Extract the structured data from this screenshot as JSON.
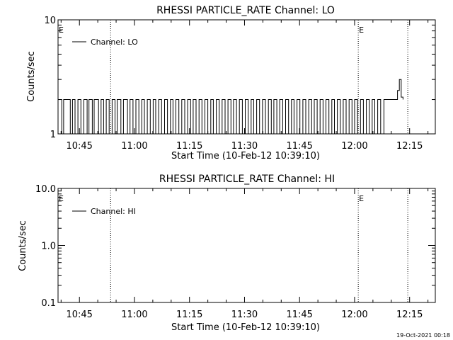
{
  "footer": {
    "timestamp": "19-Oct-2021 00:18"
  },
  "chart_data": [
    {
      "type": "line",
      "title": "RHESSI PARTICLE_RATE Channel: LO",
      "xlabel": "Start Time (10-Feb-12 10:39:10)",
      "ylabel": "Counts/sec",
      "y_scale": "log",
      "ylim": [
        1,
        10
      ],
      "y_ticks": [
        {
          "v": 1,
          "label": "1"
        },
        {
          "v": 10,
          "label": "10"
        }
      ],
      "x_ticks": [
        "10:45",
        "11:00",
        "11:15",
        "11:30",
        "11:45",
        "12:00",
        "12:15"
      ],
      "x_tick_minutes": [
        45,
        60,
        75,
        90,
        105,
        120,
        135
      ],
      "xlim_minutes": [
        39.17,
        142
      ],
      "dotted_lines_minutes": [
        53.5,
        121.0,
        134.5
      ],
      "markers": [
        {
          "label": "E",
          "at": "left"
        },
        {
          "label": "E",
          "at_minutes": 121.0
        }
      ],
      "legend": {
        "label": "Channel: LO",
        "position": "top-left"
      },
      "series": [
        {
          "name": "Channel: LO",
          "step": true,
          "x_minutes": [
            39.17,
            40.2,
            40.7,
            42.5,
            43.1,
            43.8,
            44.6,
            45.4,
            46.2,
            47.1,
            47.6,
            48.5,
            49.0,
            50.2,
            50.9,
            51.6,
            52.3,
            53.1,
            53.9,
            54.7,
            55.3,
            56.3,
            57.0,
            58.1,
            58.8,
            59.6,
            60.4,
            61.2,
            62.0,
            62.7,
            63.5,
            64.3,
            65.1,
            65.8,
            66.6,
            67.4,
            68.2,
            69.0,
            69.8,
            70.5,
            71.3,
            72.1,
            72.9,
            73.7,
            74.5,
            75.3,
            76.0,
            76.8,
            77.6,
            78.4,
            79.2,
            80.0,
            80.8,
            81.5,
            82.3,
            83.1,
            83.9,
            84.7,
            85.5,
            86.3,
            87.0,
            87.8,
            88.6,
            89.4,
            90.2,
            91.0,
            91.8,
            92.5,
            93.3,
            94.1,
            94.9,
            95.7,
            96.5,
            97.3,
            98.0,
            98.8,
            99.6,
            100.4,
            101.2,
            102.0,
            102.8,
            103.5,
            104.3,
            105.1,
            105.9,
            106.7,
            107.5,
            108.3,
            109.0,
            109.8,
            110.6,
            111.4,
            112.2,
            113.0,
            113.8,
            114.5,
            115.3,
            116.1,
            116.9,
            117.7,
            118.5,
            119.3,
            120.0,
            120.8,
            121.6,
            122.4,
            123.2,
            124.0,
            124.8,
            125.5,
            126.3,
            127.1,
            128.0,
            129.0,
            131.7,
            132.2,
            132.7,
            133.2
          ],
          "values": [
            2,
            1,
            2,
            1,
            2,
            1,
            2,
            1,
            2,
            1,
            2,
            1,
            2,
            1,
            2,
            1,
            2,
            1,
            2,
            1,
            2,
            1,
            2,
            1,
            2,
            1,
            2,
            1,
            2,
            1,
            2,
            1,
            2,
            1,
            2,
            1,
            2,
            1,
            2,
            1,
            2,
            1,
            2,
            1,
            2,
            1,
            2,
            1,
            2,
            1,
            2,
            1,
            2,
            1,
            2,
            1,
            2,
            1,
            2,
            1,
            2,
            1,
            2,
            1,
            2,
            1,
            2,
            1,
            2,
            1,
            2,
            1,
            2,
            1,
            2,
            1,
            2,
            1,
            2,
            1,
            2,
            1,
            2,
            1,
            2,
            1,
            2,
            1,
            2,
            1,
            2,
            1,
            2,
            1,
            2,
            1,
            2,
            1,
            2,
            1,
            2,
            1,
            2,
            1,
            2,
            1,
            2,
            1,
            2,
            1,
            2,
            1,
            2,
            2,
            2.4,
            3.0,
            2.1,
            2.0
          ]
        }
      ]
    },
    {
      "type": "line",
      "title": "RHESSI PARTICLE_RATE Channel: HI",
      "xlabel": "Start Time (10-Feb-12 10:39:10)",
      "ylabel": "Counts/sec",
      "y_scale": "log",
      "ylim": [
        0.1,
        10
      ],
      "y_ticks": [
        {
          "v": 0.1,
          "label": "0.1"
        },
        {
          "v": 1,
          "label": "1.0"
        },
        {
          "v": 10,
          "label": "10.0"
        }
      ],
      "x_ticks": [
        "10:45",
        "11:00",
        "11:15",
        "11:30",
        "11:45",
        "12:00",
        "12:15"
      ],
      "x_tick_minutes": [
        45,
        60,
        75,
        90,
        105,
        120,
        135
      ],
      "xlim_minutes": [
        39.17,
        142
      ],
      "dotted_lines_minutes": [
        53.5,
        121.0,
        134.5
      ],
      "markers": [
        {
          "label": "E",
          "at": "left"
        },
        {
          "label": "E",
          "at_minutes": 121.0
        }
      ],
      "legend": {
        "label": "Channel: HI",
        "position": "top-left"
      },
      "series": [
        {
          "name": "Channel: HI",
          "step": true,
          "x_minutes": [],
          "values": []
        }
      ]
    }
  ]
}
